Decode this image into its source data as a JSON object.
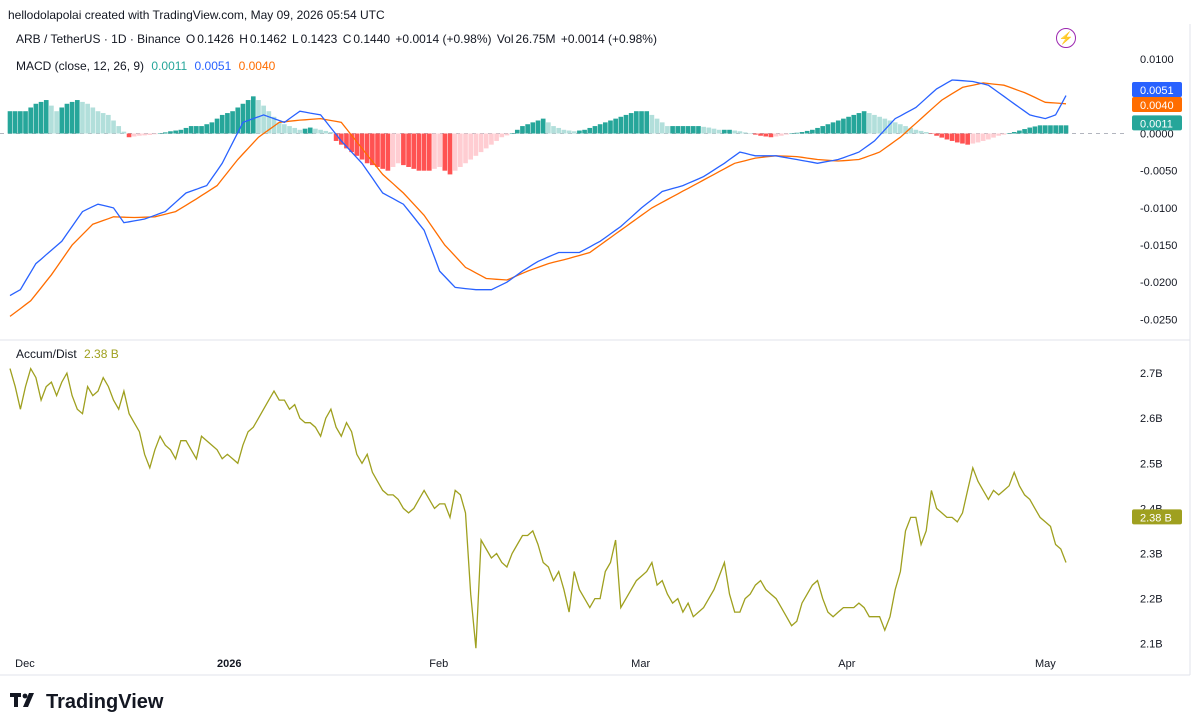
{
  "caption": "hellodolapolai created with TradingView.com, May 09, 2026 05:54 UTC",
  "symbol": {
    "name": "ARB / TetherUS · 1D · Binance",
    "o_label": "O",
    "o": "0.1426",
    "h_label": "H",
    "h": "0.1462",
    "l_label": "L",
    "l": "0.1423",
    "c_label": "C",
    "c": "0.1440",
    "change": "+0.0014 (+0.98%)",
    "vol_label": "Vol",
    "vol": "26.75M",
    "vol_change": "+0.0014 (+0.98%)"
  },
  "macd_title": "MACD (close, 12, 26, 9)",
  "macd_values": {
    "hist": "0.0011",
    "macd": "0.0051",
    "signal": "0.0040"
  },
  "ad_title": "Accum/Dist",
  "ad_value": "2.38 B",
  "brand": "TradingView",
  "colors": {
    "macd_line": "#2962ff",
    "signal_line": "#ff6d00",
    "hist_pos_strong": "#26a69a",
    "hist_pos_weak": "#b2dfdb",
    "hist_neg_strong": "#ff5252",
    "hist_neg_weak": "#ffcdd2",
    "ad_line": "#9fa01f",
    "grid": "#e0e3eb"
  },
  "chart_data": [
    {
      "type": "bar+line",
      "name": "MACD",
      "ylim": [
        -0.0275,
        0.0115
      ],
      "yticks": [
        "0.0100",
        "0.0050",
        "0.0000",
        "-0.0050",
        "-0.0100",
        "-0.0150",
        "-0.0200",
        "-0.0250"
      ],
      "ytick_values": [
        0.01,
        0.005,
        0.0,
        -0.005,
        -0.01,
        -0.015,
        -0.02,
        -0.025
      ],
      "x_labels": [
        "Dec",
        "2026",
        "Feb",
        "Mar",
        "Apr",
        "May"
      ],
      "macd_keypoints": [
        [
          0,
          -0.0218
        ],
        [
          2,
          -0.021
        ],
        [
          5,
          -0.0175
        ],
        [
          10,
          -0.0145
        ],
        [
          14,
          -0.0105
        ],
        [
          17,
          -0.0095
        ],
        [
          20,
          -0.01
        ],
        [
          22,
          -0.012
        ],
        [
          26,
          -0.0115
        ],
        [
          30,
          -0.0105
        ],
        [
          34,
          -0.008
        ],
        [
          38,
          -0.007
        ],
        [
          41,
          -0.004
        ],
        [
          45,
          0.0015
        ],
        [
          49,
          0.0025
        ],
        [
          53,
          0.0015
        ],
        [
          56,
          0.003
        ],
        [
          60,
          0.0025
        ],
        [
          64,
          -0.001
        ],
        [
          68,
          -0.004
        ],
        [
          72,
          -0.008
        ],
        [
          76,
          -0.0095
        ],
        [
          80,
          -0.013
        ],
        [
          83,
          -0.0185
        ],
        [
          86,
          -0.0207
        ],
        [
          90,
          -0.021
        ],
        [
          93,
          -0.021
        ],
        [
          96,
          -0.02
        ],
        [
          99,
          -0.0185
        ],
        [
          102,
          -0.0172
        ],
        [
          106,
          -0.016
        ],
        [
          110,
          -0.016
        ],
        [
          114,
          -0.0145
        ],
        [
          118,
          -0.0125
        ],
        [
          122,
          -0.01
        ],
        [
          126,
          -0.0078
        ],
        [
          130,
          -0.007
        ],
        [
          134,
          -0.0058
        ],
        [
          138,
          -0.004
        ],
        [
          141,
          -0.0025
        ],
        [
          144,
          -0.003
        ],
        [
          148,
          -0.003
        ],
        [
          152,
          -0.0035
        ],
        [
          156,
          -0.004
        ],
        [
          160,
          -0.0035
        ],
        [
          164,
          -0.0025
        ],
        [
          167,
          -0.001
        ],
        [
          171,
          0.002
        ],
        [
          175,
          0.0035
        ],
        [
          179,
          0.006
        ],
        [
          182,
          0.0072
        ],
        [
          186,
          0.007
        ],
        [
          189,
          0.0065
        ],
        [
          193,
          0.0045
        ],
        [
          197,
          0.0025
        ],
        [
          200,
          0.002
        ],
        [
          202,
          0.0025
        ],
        [
          204,
          0.0051
        ]
      ],
      "signal_keypoints": [
        [
          0,
          -0.0246
        ],
        [
          4,
          -0.0225
        ],
        [
          8,
          -0.019
        ],
        [
          12,
          -0.015
        ],
        [
          16,
          -0.0122
        ],
        [
          20,
          -0.0112
        ],
        [
          24,
          -0.0113
        ],
        [
          28,
          -0.0112
        ],
        [
          32,
          -0.0105
        ],
        [
          36,
          -0.0088
        ],
        [
          40,
          -0.007
        ],
        [
          44,
          -0.0035
        ],
        [
          48,
          -0.0005
        ],
        [
          52,
          0.0015
        ],
        [
          56,
          0.0018
        ],
        [
          60,
          0.002
        ],
        [
          64,
          0.0015
        ],
        [
          68,
          -0.002
        ],
        [
          72,
          -0.0055
        ],
        [
          76,
          -0.008
        ],
        [
          80,
          -0.011
        ],
        [
          84,
          -0.015
        ],
        [
          88,
          -0.018
        ],
        [
          92,
          -0.0195
        ],
        [
          96,
          -0.0197
        ],
        [
          100,
          -0.0185
        ],
        [
          104,
          -0.0175
        ],
        [
          108,
          -0.0168
        ],
        [
          112,
          -0.016
        ],
        [
          116,
          -0.014
        ],
        [
          120,
          -0.012
        ],
        [
          124,
          -0.01
        ],
        [
          128,
          -0.0085
        ],
        [
          132,
          -0.007
        ],
        [
          136,
          -0.0055
        ],
        [
          140,
          -0.004
        ],
        [
          144,
          -0.0033
        ],
        [
          148,
          -0.003
        ],
        [
          152,
          -0.0031
        ],
        [
          156,
          -0.0035
        ],
        [
          160,
          -0.0037
        ],
        [
          164,
          -0.0035
        ],
        [
          168,
          -0.0025
        ],
        [
          172,
          -0.0005
        ],
        [
          176,
          0.002
        ],
        [
          180,
          0.0045
        ],
        [
          184,
          0.0062
        ],
        [
          188,
          0.0068
        ],
        [
          192,
          0.0065
        ],
        [
          196,
          0.0055
        ],
        [
          200,
          0.0042
        ],
        [
          204,
          0.004
        ]
      ],
      "hist_keypoints": [
        [
          0,
          0.003
        ],
        [
          3,
          0.003
        ],
        [
          5,
          0.004
        ],
        [
          7,
          0.0045
        ],
        [
          9,
          0.003
        ],
        [
          11,
          0.004
        ],
        [
          13,
          0.0045
        ],
        [
          15,
          0.004
        ],
        [
          17,
          0.003
        ],
        [
          19,
          0.0025
        ],
        [
          21,
          0.001
        ],
        [
          23,
          -0.0005
        ],
        [
          25,
          -0.0003
        ],
        [
          27,
          -0.0002
        ],
        [
          29,
          0.0
        ],
        [
          31,
          0.0003
        ],
        [
          33,
          0.0005
        ],
        [
          35,
          0.001
        ],
        [
          37,
          0.001
        ],
        [
          39,
          0.0015
        ],
        [
          41,
          0.0025
        ],
        [
          43,
          0.003
        ],
        [
          45,
          0.004
        ],
        [
          47,
          0.005
        ],
        [
          48,
          0.0045
        ],
        [
          50,
          0.003
        ],
        [
          52,
          0.0015
        ],
        [
          54,
          0.001
        ],
        [
          56,
          0.0005
        ],
        [
          58,
          0.0008
        ],
        [
          60,
          0.0005
        ],
        [
          62,
          0.0002
        ],
        [
          63,
          -0.001
        ],
        [
          65,
          -0.002
        ],
        [
          67,
          -0.003
        ],
        [
          69,
          -0.004
        ],
        [
          71,
          -0.0045
        ],
        [
          73,
          -0.005
        ],
        [
          75,
          -0.004
        ],
        [
          77,
          -0.0045
        ],
        [
          79,
          -0.005
        ],
        [
          81,
          -0.005
        ],
        [
          83,
          -0.0045
        ],
        [
          85,
          -0.0055
        ],
        [
          87,
          -0.0045
        ],
        [
          89,
          -0.0035
        ],
        [
          91,
          -0.0025
        ],
        [
          93,
          -0.0015
        ],
        [
          95,
          -0.0005
        ],
        [
          97,
          0.0
        ],
        [
          99,
          0.001
        ],
        [
          101,
          0.0015
        ],
        [
          103,
          0.002
        ],
        [
          105,
          0.001
        ],
        [
          107,
          0.0005
        ],
        [
          109,
          0.0003
        ],
        [
          111,
          0.0005
        ],
        [
          113,
          0.001
        ],
        [
          115,
          0.0015
        ],
        [
          117,
          0.002
        ],
        [
          119,
          0.0025
        ],
        [
          121,
          0.003
        ],
        [
          123,
          0.003
        ],
        [
          125,
          0.002
        ],
        [
          127,
          0.001
        ],
        [
          129,
          0.001
        ],
        [
          131,
          0.001
        ],
        [
          133,
          0.001
        ],
        [
          135,
          0.0008
        ],
        [
          137,
          0.0005
        ],
        [
          139,
          0.0005
        ],
        [
          141,
          0.0003
        ],
        [
          143,
          0.0
        ],
        [
          145,
          -0.0003
        ],
        [
          147,
          -0.0005
        ],
        [
          149,
          -0.0003
        ],
        [
          151,
          0.0
        ],
        [
          153,
          0.0002
        ],
        [
          155,
          0.0005
        ],
        [
          157,
          0.001
        ],
        [
          159,
          0.0015
        ],
        [
          161,
          0.002
        ],
        [
          163,
          0.0025
        ],
        [
          165,
          0.003
        ],
        [
          167,
          0.0025
        ],
        [
          169,
          0.002
        ],
        [
          171,
          0.0015
        ],
        [
          173,
          0.001
        ],
        [
          175,
          0.0005
        ],
        [
          177,
          0.0002
        ],
        [
          179,
          -0.0003
        ],
        [
          181,
          -0.0008
        ],
        [
          183,
          -0.0012
        ],
        [
          185,
          -0.0015
        ],
        [
          187,
          -0.0012
        ],
        [
          189,
          -0.0008
        ],
        [
          191,
          -0.0003
        ],
        [
          193,
          0.0
        ],
        [
          195,
          0.0004
        ],
        [
          197,
          0.0008
        ],
        [
          199,
          0.0011
        ],
        [
          201,
          0.0011
        ],
        [
          204,
          0.0011
        ]
      ]
    },
    {
      "type": "line",
      "name": "Accum/Dist",
      "ylim": [
        2.075,
        2.76
      ],
      "yticks": [
        "2.7B",
        "2.6B",
        "2.5B",
        "2.4B",
        "2.3B",
        "2.2B",
        "2.1B"
      ],
      "ytick_values": [
        2.7,
        2.6,
        2.5,
        2.4,
        2.3,
        2.2,
        2.1
      ],
      "x_labels": [
        "Dec",
        "2026",
        "Feb",
        "Mar",
        "Apr",
        "May"
      ],
      "values": [
        2.71,
        2.67,
        2.62,
        2.67,
        2.71,
        2.69,
        2.64,
        2.67,
        2.68,
        2.65,
        2.68,
        2.7,
        2.65,
        2.62,
        2.61,
        2.67,
        2.65,
        2.66,
        2.69,
        2.67,
        2.64,
        2.62,
        2.66,
        2.61,
        2.59,
        2.57,
        2.52,
        2.49,
        2.53,
        2.56,
        2.54,
        2.53,
        2.51,
        2.55,
        2.55,
        2.53,
        2.51,
        2.56,
        2.55,
        2.54,
        2.53,
        2.51,
        2.52,
        2.51,
        2.5,
        2.54,
        2.57,
        2.58,
        2.6,
        2.62,
        2.64,
        2.66,
        2.64,
        2.64,
        2.62,
        2.63,
        2.6,
        2.59,
        2.59,
        2.58,
        2.56,
        2.6,
        2.62,
        2.58,
        2.56,
        2.59,
        2.57,
        2.52,
        2.5,
        2.52,
        2.48,
        2.46,
        2.44,
        2.43,
        2.43,
        2.42,
        2.4,
        2.39,
        2.4,
        2.42,
        2.44,
        2.42,
        2.4,
        2.41,
        2.41,
        2.38,
        2.44,
        2.43,
        2.39,
        2.21,
        2.09,
        2.33,
        2.31,
        2.29,
        2.3,
        2.28,
        2.27,
        2.3,
        2.32,
        2.34,
        2.34,
        2.35,
        2.32,
        2.28,
        2.27,
        2.24,
        2.26,
        2.22,
        2.17,
        2.26,
        2.22,
        2.2,
        2.18,
        2.2,
        2.2,
        2.26,
        2.28,
        2.33,
        2.18,
        2.2,
        2.22,
        2.24,
        2.25,
        2.26,
        2.28,
        2.23,
        2.24,
        2.21,
        2.19,
        2.2,
        2.17,
        2.19,
        2.16,
        2.17,
        2.18,
        2.2,
        2.22,
        2.25,
        2.28,
        2.21,
        2.17,
        2.17,
        2.2,
        2.21,
        2.23,
        2.24,
        2.22,
        2.21,
        2.2,
        2.18,
        2.16,
        2.14,
        2.15,
        2.19,
        2.21,
        2.23,
        2.24,
        2.2,
        2.17,
        2.16,
        2.17,
        2.18,
        2.18,
        2.18,
        2.19,
        2.18,
        2.16,
        2.16,
        2.16,
        2.13,
        2.16,
        2.22,
        2.26,
        2.35,
        2.38,
        2.38,
        2.32,
        2.35,
        2.44,
        2.4,
        2.39,
        2.38,
        2.38,
        2.37,
        2.39,
        2.44,
        2.49,
        2.46,
        2.44,
        2.42,
        2.44,
        2.43,
        2.44,
        2.45,
        2.48,
        2.45,
        2.43,
        2.42,
        2.4,
        2.38,
        2.37,
        2.36,
        2.32,
        2.31,
        2.28,
        2.26,
        2.28,
        2.33,
        2.34,
        2.36,
        2.4,
        2.38,
        2.38
      ]
    }
  ]
}
